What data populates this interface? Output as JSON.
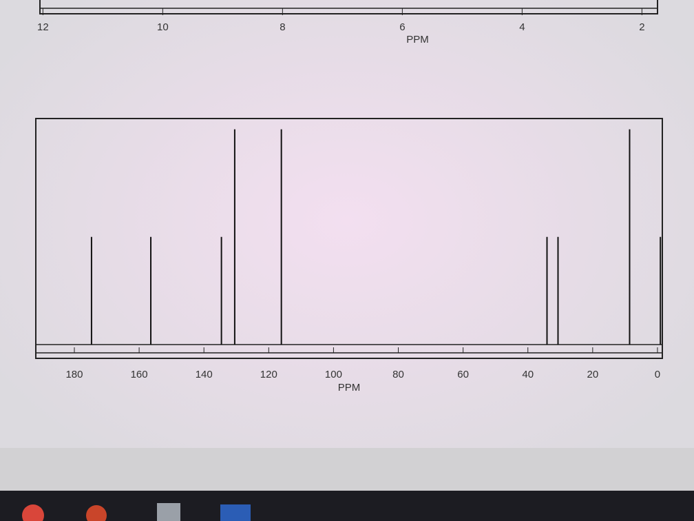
{
  "chart_data": [
    {
      "type": "spectrum",
      "xlabel": "PPM",
      "xlim": [
        12.05,
        1.74
      ],
      "xticks": [
        12,
        10,
        8,
        6,
        4,
        2
      ]
    },
    {
      "type": "spectrum",
      "xlabel": "PPM",
      "xlim": [
        191.9,
        -1.5
      ],
      "ylim": [
        0,
        1.05
      ],
      "xticks": [
        180,
        160,
        140,
        120,
        100,
        80,
        60,
        40,
        20,
        0
      ],
      "x": [
        174.7,
        156.4,
        134.6,
        130.5,
        116.1,
        34.1,
        30.7,
        8.6,
        -0.9
      ],
      "values": [
        0.5,
        0.5,
        0.5,
        1.0,
        1.0,
        0.5,
        0.5,
        1.0,
        0.5
      ]
    }
  ]
}
